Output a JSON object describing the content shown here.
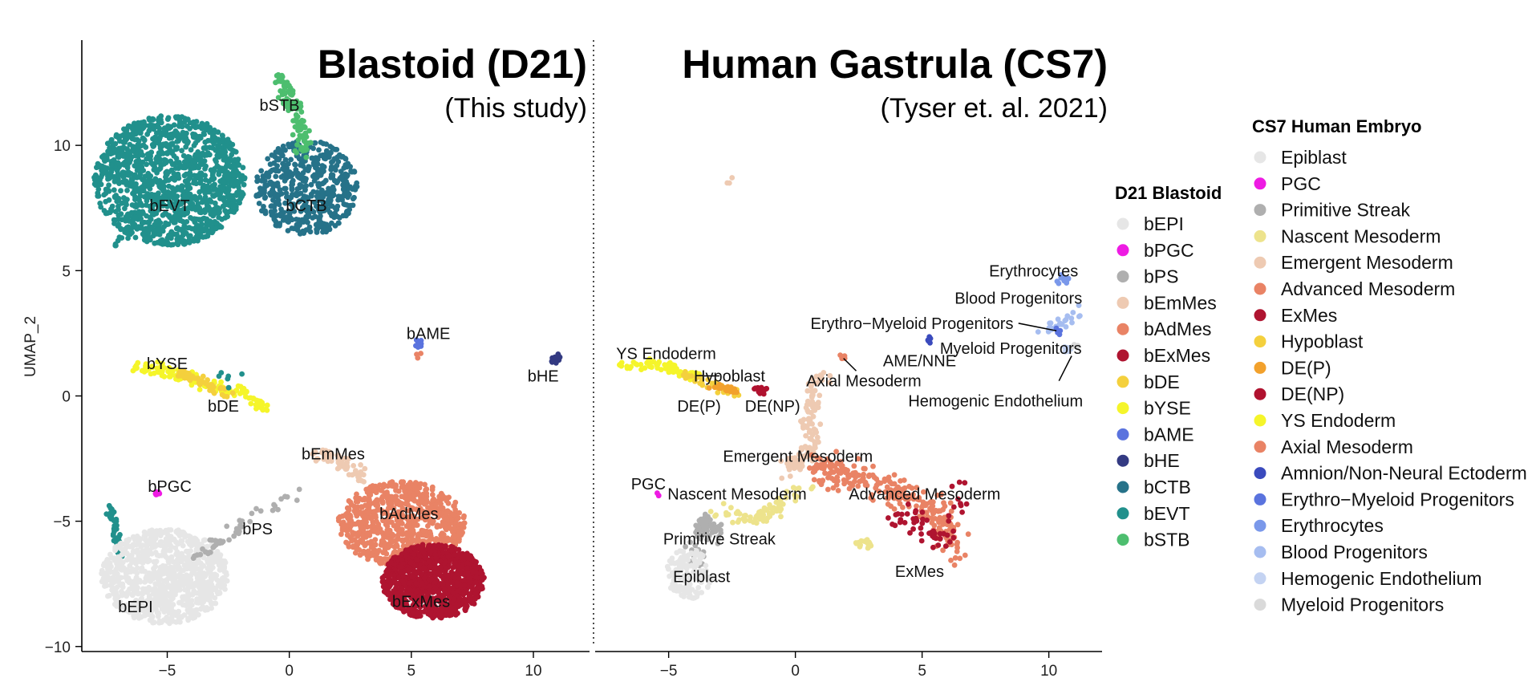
{
  "chart_data": {
    "type": "scatter",
    "ylabel": "UMAP_2",
    "xlabel": "",
    "ylim": [
      -10.2,
      14.2
    ],
    "y_ticks": [
      10,
      5,
      0,
      -5,
      -10
    ],
    "grid": false,
    "panels": [
      {
        "title": "Blastoid (D21)",
        "subtitle": "(This study)",
        "xlim": [
          -8.5,
          12.3
        ],
        "x_ticks": [
          -5,
          0,
          5,
          10
        ],
        "labels": [
          {
            "text": "bSTB",
            "x": -0.4,
            "y": 11.6
          },
          {
            "text": "bEVT",
            "x": -4.9,
            "y": 7.6
          },
          {
            "text": "bCTB",
            "x": 0.7,
            "y": 7.6
          },
          {
            "text": "bAME",
            "x": 5.7,
            "y": 2.5
          },
          {
            "text": "bHE",
            "x": 10.4,
            "y": 0.8
          },
          {
            "text": "bYSE",
            "x": -5.0,
            "y": 1.3
          },
          {
            "text": "bDE",
            "x": -2.7,
            "y": -0.4
          },
          {
            "text": "bEmMes",
            "x": 1.8,
            "y": -2.3
          },
          {
            "text": "bPGC",
            "x": -4.9,
            "y": -3.6
          },
          {
            "text": "bPS",
            "x": -1.3,
            "y": -5.3
          },
          {
            "text": "bAdMes",
            "x": 4.9,
            "y": -4.7
          },
          {
            "text": "bEPI",
            "x": -6.3,
            "y": -8.4
          },
          {
            "text": "bExMes",
            "x": 5.4,
            "y": -8.2
          }
        ],
        "clusters": [
          {
            "name": "bEVT",
            "shape": "ellipse",
            "cx": -4.9,
            "cy": 8.6,
            "rx": 3.1,
            "ry": 2.6,
            "n": 1300
          },
          {
            "name": "bCTB",
            "shape": "ellipse",
            "cx": 0.7,
            "cy": 8.3,
            "rx": 2.1,
            "ry": 1.9,
            "n": 520
          },
          {
            "name": "bSTB",
            "shape": "curve",
            "pts": [
              [
                -0.4,
                12.8
              ],
              [
                0.0,
                11.8
              ],
              [
                0.5,
                10.6
              ],
              [
                0.7,
                9.8
              ]
            ],
            "spread": 0.28,
            "n": 110
          },
          {
            "name": "bEVT",
            "shape": "curve",
            "pts": [
              [
                -7.3,
                -4.5
              ],
              [
                -7.1,
                -5.5
              ],
              [
                -6.9,
                -6.5
              ]
            ],
            "spread": 0.12,
            "n": 50
          },
          {
            "name": "bEVT",
            "shape": "curve",
            "pts": [
              [
                -7.1,
                6.0
              ],
              [
                -6.6,
                6.6
              ]
            ],
            "spread": 0.15,
            "n": 10
          },
          {
            "name": "bEPI",
            "shape": "ellipse",
            "cx": -5.1,
            "cy": -7.2,
            "rx": 2.6,
            "ry": 1.9,
            "n": 950
          },
          {
            "name": "bPS",
            "shape": "curve",
            "pts": [
              [
                -4.0,
                -6.5
              ],
              [
                -2.8,
                -5.8
              ],
              [
                -1.6,
                -5.0
              ],
              [
                0.4,
                -3.8
              ]
            ],
            "spread": 0.22,
            "n": 45
          },
          {
            "name": "bPGC",
            "shape": "ellipse",
            "cx": -5.4,
            "cy": -3.9,
            "rx": 0.15,
            "ry": 0.1,
            "n": 6
          },
          {
            "name": "bEmMes",
            "shape": "curve",
            "pts": [
              [
                1.2,
                -2.2
              ],
              [
                2.2,
                -2.6
              ],
              [
                3.0,
                -3.3
              ]
            ],
            "spread": 0.3,
            "n": 60
          },
          {
            "name": "bAdMes",
            "shape": "ellipse",
            "cx": 4.6,
            "cy": -5.1,
            "rx": 2.6,
            "ry": 1.7,
            "n": 750
          },
          {
            "name": "bExMes",
            "shape": "ellipse",
            "cx": 5.9,
            "cy": -7.4,
            "rx": 2.1,
            "ry": 1.5,
            "n": 1100
          },
          {
            "name": "bYSE",
            "shape": "curve",
            "pts": [
              [
                -6.5,
                1.2
              ],
              [
                -4.9,
                1.0
              ],
              [
                -3.6,
                0.5
              ],
              [
                -2.0,
                0.2
              ],
              [
                -1.0,
                -0.5
              ]
            ],
            "spread": 0.2,
            "n": 140
          },
          {
            "name": "bDE",
            "shape": "curve",
            "pts": [
              [
                -4.5,
                0.9
              ],
              [
                -3.5,
                0.5
              ],
              [
                -2.5,
                0.1
              ]
            ],
            "spread": 0.18,
            "n": 50
          },
          {
            "name": "bAME",
            "shape": "ellipse",
            "cx": 5.3,
            "cy": 2.1,
            "rx": 0.15,
            "ry": 0.18,
            "n": 8
          },
          {
            "name": "bAdMes",
            "shape": "ellipse",
            "cx": 5.3,
            "cy": 1.7,
            "rx": 0.1,
            "ry": 0.2,
            "n": 3
          },
          {
            "name": "bHE",
            "shape": "ellipse",
            "cx": 10.9,
            "cy": 1.5,
            "rx": 0.2,
            "ry": 0.22,
            "n": 14
          },
          {
            "name": "bEVT",
            "shape": "ellipse",
            "cx": -2.3,
            "cy": 0.7,
            "rx": 0.7,
            "ry": 0.4,
            "n": 6
          }
        ]
      },
      {
        "title": "Human Gastrula (CS7)",
        "subtitle": "(Tyser et. al. 2021)",
        "xlim": [
          -7.9,
          12.1
        ],
        "x_ticks": [
          -5,
          0,
          5,
          10
        ],
        "labels": [
          {
            "text": "Erythrocytes",
            "x": 9.4,
            "y": 5.0
          },
          {
            "text": "Blood Progenitors",
            "x": 8.8,
            "y": 3.9
          },
          {
            "text": "Erythro−Myeloid Progenitors",
            "x": 4.6,
            "y": 2.9,
            "line": [
              [
                8.8,
                2.9
              ],
              [
                10.3,
                2.6
              ]
            ]
          },
          {
            "text": "Myeloid Progenitors",
            "x": 8.5,
            "y": 1.9
          },
          {
            "text": "AME/NNE",
            "x": 4.9,
            "y": 1.4
          },
          {
            "text": "YS Endoderm",
            "x": -5.1,
            "y": 1.7
          },
          {
            "text": "Hypoblast",
            "x": -2.6,
            "y": 0.8,
            "line": [
              [
                -3.6,
                0.8
              ],
              [
                -3.0,
                0.8
              ]
            ]
          },
          {
            "text": "Axial Mesoderm",
            "x": 2.7,
            "y": 0.6,
            "line": [
              [
                2.4,
                1.0
              ],
              [
                1.9,
                1.5
              ]
            ]
          },
          {
            "text": "Hemogenic Endothelium",
            "x": 7.9,
            "y": -0.2,
            "line": [
              [
                10.4,
                0.6
              ],
              [
                10.9,
                1.6
              ]
            ]
          },
          {
            "text": "DE(P)",
            "x": -3.8,
            "y": -0.4
          },
          {
            "text": "DE(NP)",
            "x": -0.9,
            "y": -0.4
          },
          {
            "text": "Emergent Mesoderm",
            "x": 0.1,
            "y": -2.4
          },
          {
            "text": "PGC",
            "x": -5.8,
            "y": -3.5
          },
          {
            "text": "Nascent Mesoderm",
            "x": -2.3,
            "y": -3.9
          },
          {
            "text": "Advanced Mesoderm",
            "x": 5.1,
            "y": -3.9
          },
          {
            "text": "Primitive Streak",
            "x": -3.0,
            "y": -5.7
          },
          {
            "text": "ExMes",
            "x": 4.9,
            "y": -7.0
          },
          {
            "text": "Epiblast",
            "x": -3.7,
            "y": -7.2
          }
        ],
        "clusters": [
          {
            "name": "YS Endoderm",
            "shape": "curve",
            "pts": [
              [
                -7.0,
                1.2
              ],
              [
                -5.6,
                1.3
              ],
              [
                -4.6,
                1.0
              ],
              [
                -3.8,
                0.8
              ]
            ],
            "spread": 0.14,
            "n": 90
          },
          {
            "name": "Hypoblast",
            "shape": "curve",
            "pts": [
              [
                -4.4,
                0.9
              ],
              [
                -3.3,
                0.4
              ],
              [
                -2.4,
                0.1
              ]
            ],
            "spread": 0.14,
            "n": 35
          },
          {
            "name": "DE(P)",
            "shape": "curve",
            "pts": [
              [
                -3.3,
                0.4
              ],
              [
                -2.3,
                0.2
              ]
            ],
            "spread": 0.12,
            "n": 25
          },
          {
            "name": "DE(NP)",
            "shape": "ellipse",
            "cx": -1.4,
            "cy": 0.2,
            "rx": 0.3,
            "ry": 0.2,
            "n": 14
          },
          {
            "name": "Axial Mesoderm",
            "shape": "ellipse",
            "cx": 1.9,
            "cy": 1.6,
            "rx": 0.15,
            "ry": 0.12,
            "n": 5
          },
          {
            "name": "Emergent Mesoderm",
            "shape": "curve",
            "pts": [
              [
                0.8,
                0.8
              ],
              [
                0.6,
                -1.0
              ],
              [
                0.6,
                -2.4
              ],
              [
                -0.3,
                -2.8
              ]
            ],
            "spread": 0.35,
            "n": 120
          },
          {
            "name": "Emergent Mesoderm",
            "shape": "ellipse",
            "cx": -2.7,
            "cy": 8.6,
            "rx": 0.6,
            "ry": 0.25,
            "n": 3
          },
          {
            "name": "Advanced Mesoderm",
            "shape": "curve",
            "pts": [
              [
                0.8,
                -2.9
              ],
              [
                2.5,
                -3.3
              ],
              [
                4.3,
                -4.0
              ],
              [
                5.7,
                -4.6
              ],
              [
                6.2,
                -6.3
              ]
            ],
            "spread": 0.5,
            "n": 260
          },
          {
            "name": "ExMes",
            "shape": "curve",
            "pts": [
              [
                4.1,
                -4.8
              ],
              [
                4.8,
                -5.1
              ],
              [
                6.0,
                -5.8
              ],
              [
                6.6,
                -3.5
              ]
            ],
            "spread": 0.4,
            "n": 55
          },
          {
            "name": "Nascent Mesoderm",
            "shape": "curve",
            "pts": [
              [
                -3.2,
                -4.5
              ],
              [
                -1.6,
                -4.9
              ],
              [
                -0.8,
                -4.5
              ],
              [
                0.5,
                -3.6
              ]
            ],
            "spread": 0.28,
            "n": 70
          },
          {
            "name": "Nascent Mesoderm",
            "shape": "ellipse",
            "cx": 2.7,
            "cy": -5.9,
            "rx": 0.35,
            "ry": 0.2,
            "n": 14
          },
          {
            "name": "Primitive Streak",
            "shape": "curve",
            "pts": [
              [
                -4.0,
                -6.6
              ],
              [
                -3.6,
                -5.0
              ],
              [
                -3.0,
                -5.6
              ]
            ],
            "spread": 0.3,
            "n": 70
          },
          {
            "name": "Epiblast",
            "shape": "ellipse",
            "cx": -4.2,
            "cy": -7.1,
            "rx": 0.9,
            "ry": 1.0,
            "n": 140
          },
          {
            "name": "PGC",
            "shape": "ellipse",
            "cx": -5.4,
            "cy": -3.9,
            "rx": 0.1,
            "ry": 0.08,
            "n": 3
          },
          {
            "name": "Amnion/Non-Neural Ectoderm",
            "shape": "ellipse",
            "cx": 5.3,
            "cy": 2.2,
            "rx": 0.1,
            "ry": 0.2,
            "n": 5
          },
          {
            "name": "Erythrocytes",
            "shape": "ellipse",
            "cx": 10.5,
            "cy": 4.6,
            "rx": 0.3,
            "ry": 0.25,
            "n": 10
          },
          {
            "name": "Blood Progenitors",
            "shape": "curve",
            "pts": [
              [
                9.7,
                2.7
              ],
              [
                10.6,
                2.8
              ],
              [
                11.1,
                3.5
              ]
            ],
            "spread": 0.2,
            "n": 25
          },
          {
            "name": "Erythro−Myeloid Progenitors",
            "shape": "ellipse",
            "cx": 10.4,
            "cy": 2.6,
            "rx": 0.2,
            "ry": 0.15,
            "n": 5
          },
          {
            "name": "Hemogenic Endothelium",
            "shape": "curve",
            "pts": [
              [
                10.5,
                2.1
              ],
              [
                10.9,
                1.8
              ]
            ],
            "spread": 0.15,
            "n": 8
          },
          {
            "name": "Myeloid Progenitors",
            "shape": "ellipse",
            "cx": 11.0,
            "cy": 2.0,
            "rx": 0.15,
            "ry": 0.15,
            "n": 4
          }
        ]
      }
    ],
    "legends": [
      {
        "title": "D21 Blastoid",
        "entries": [
          {
            "name": "bEPI",
            "color": "#E6E6E6"
          },
          {
            "name": "bPGC",
            "color": "#EE1BE3"
          },
          {
            "name": "bPS",
            "color": "#AFAFAF"
          },
          {
            "name": "bEmMes",
            "color": "#EECAB2"
          },
          {
            "name": "bAdMes",
            "color": "#E98365"
          },
          {
            "name": "bExMes",
            "color": "#AF1430"
          },
          {
            "name": "bDE",
            "color": "#F4D03D"
          },
          {
            "name": "bYSE",
            "color": "#F5F52A"
          },
          {
            "name": "bAME",
            "color": "#5A73DE"
          },
          {
            "name": "bHE",
            "color": "#333A82"
          },
          {
            "name": "bCTB",
            "color": "#267289"
          },
          {
            "name": "bEVT",
            "color": "#21908C"
          },
          {
            "name": "bSTB",
            "color": "#4DBE6F"
          }
        ]
      },
      {
        "title": "CS7 Human Embryo",
        "entries": [
          {
            "name": "Epiblast",
            "color": "#E6E6E6"
          },
          {
            "name": "PGC",
            "color": "#EE1BE3"
          },
          {
            "name": "Primitive Streak",
            "color": "#AFAFAF"
          },
          {
            "name": "Nascent Mesoderm",
            "color": "#EDE38C"
          },
          {
            "name": "Emergent Mesoderm",
            "color": "#EECAB2"
          },
          {
            "name": "Advanced Mesoderm",
            "color": "#E98365"
          },
          {
            "name": "ExMes",
            "color": "#AF1430"
          },
          {
            "name": "Hypoblast",
            "color": "#F4D03D"
          },
          {
            "name": "DE(P)",
            "color": "#F2A12C"
          },
          {
            "name": "DE(NP)",
            "color": "#B0122F"
          },
          {
            "name": "YS Endoderm",
            "color": "#F5F52A"
          },
          {
            "name": "Axial Mesoderm",
            "color": "#E98365"
          },
          {
            "name": "Amnion/Non-Neural Ectoderm",
            "color": "#3A4ABD"
          },
          {
            "name": "Erythro−Myeloid Progenitors",
            "color": "#5A73DE"
          },
          {
            "name": "Erythrocytes",
            "color": "#7A98EA"
          },
          {
            "name": "Blood Progenitors",
            "color": "#A6BDF0"
          },
          {
            "name": "Hemogenic Endothelium",
            "color": "#C4D3F2"
          },
          {
            "name": "Myeloid Progenitors",
            "color": "#DADADA"
          }
        ]
      }
    ]
  }
}
